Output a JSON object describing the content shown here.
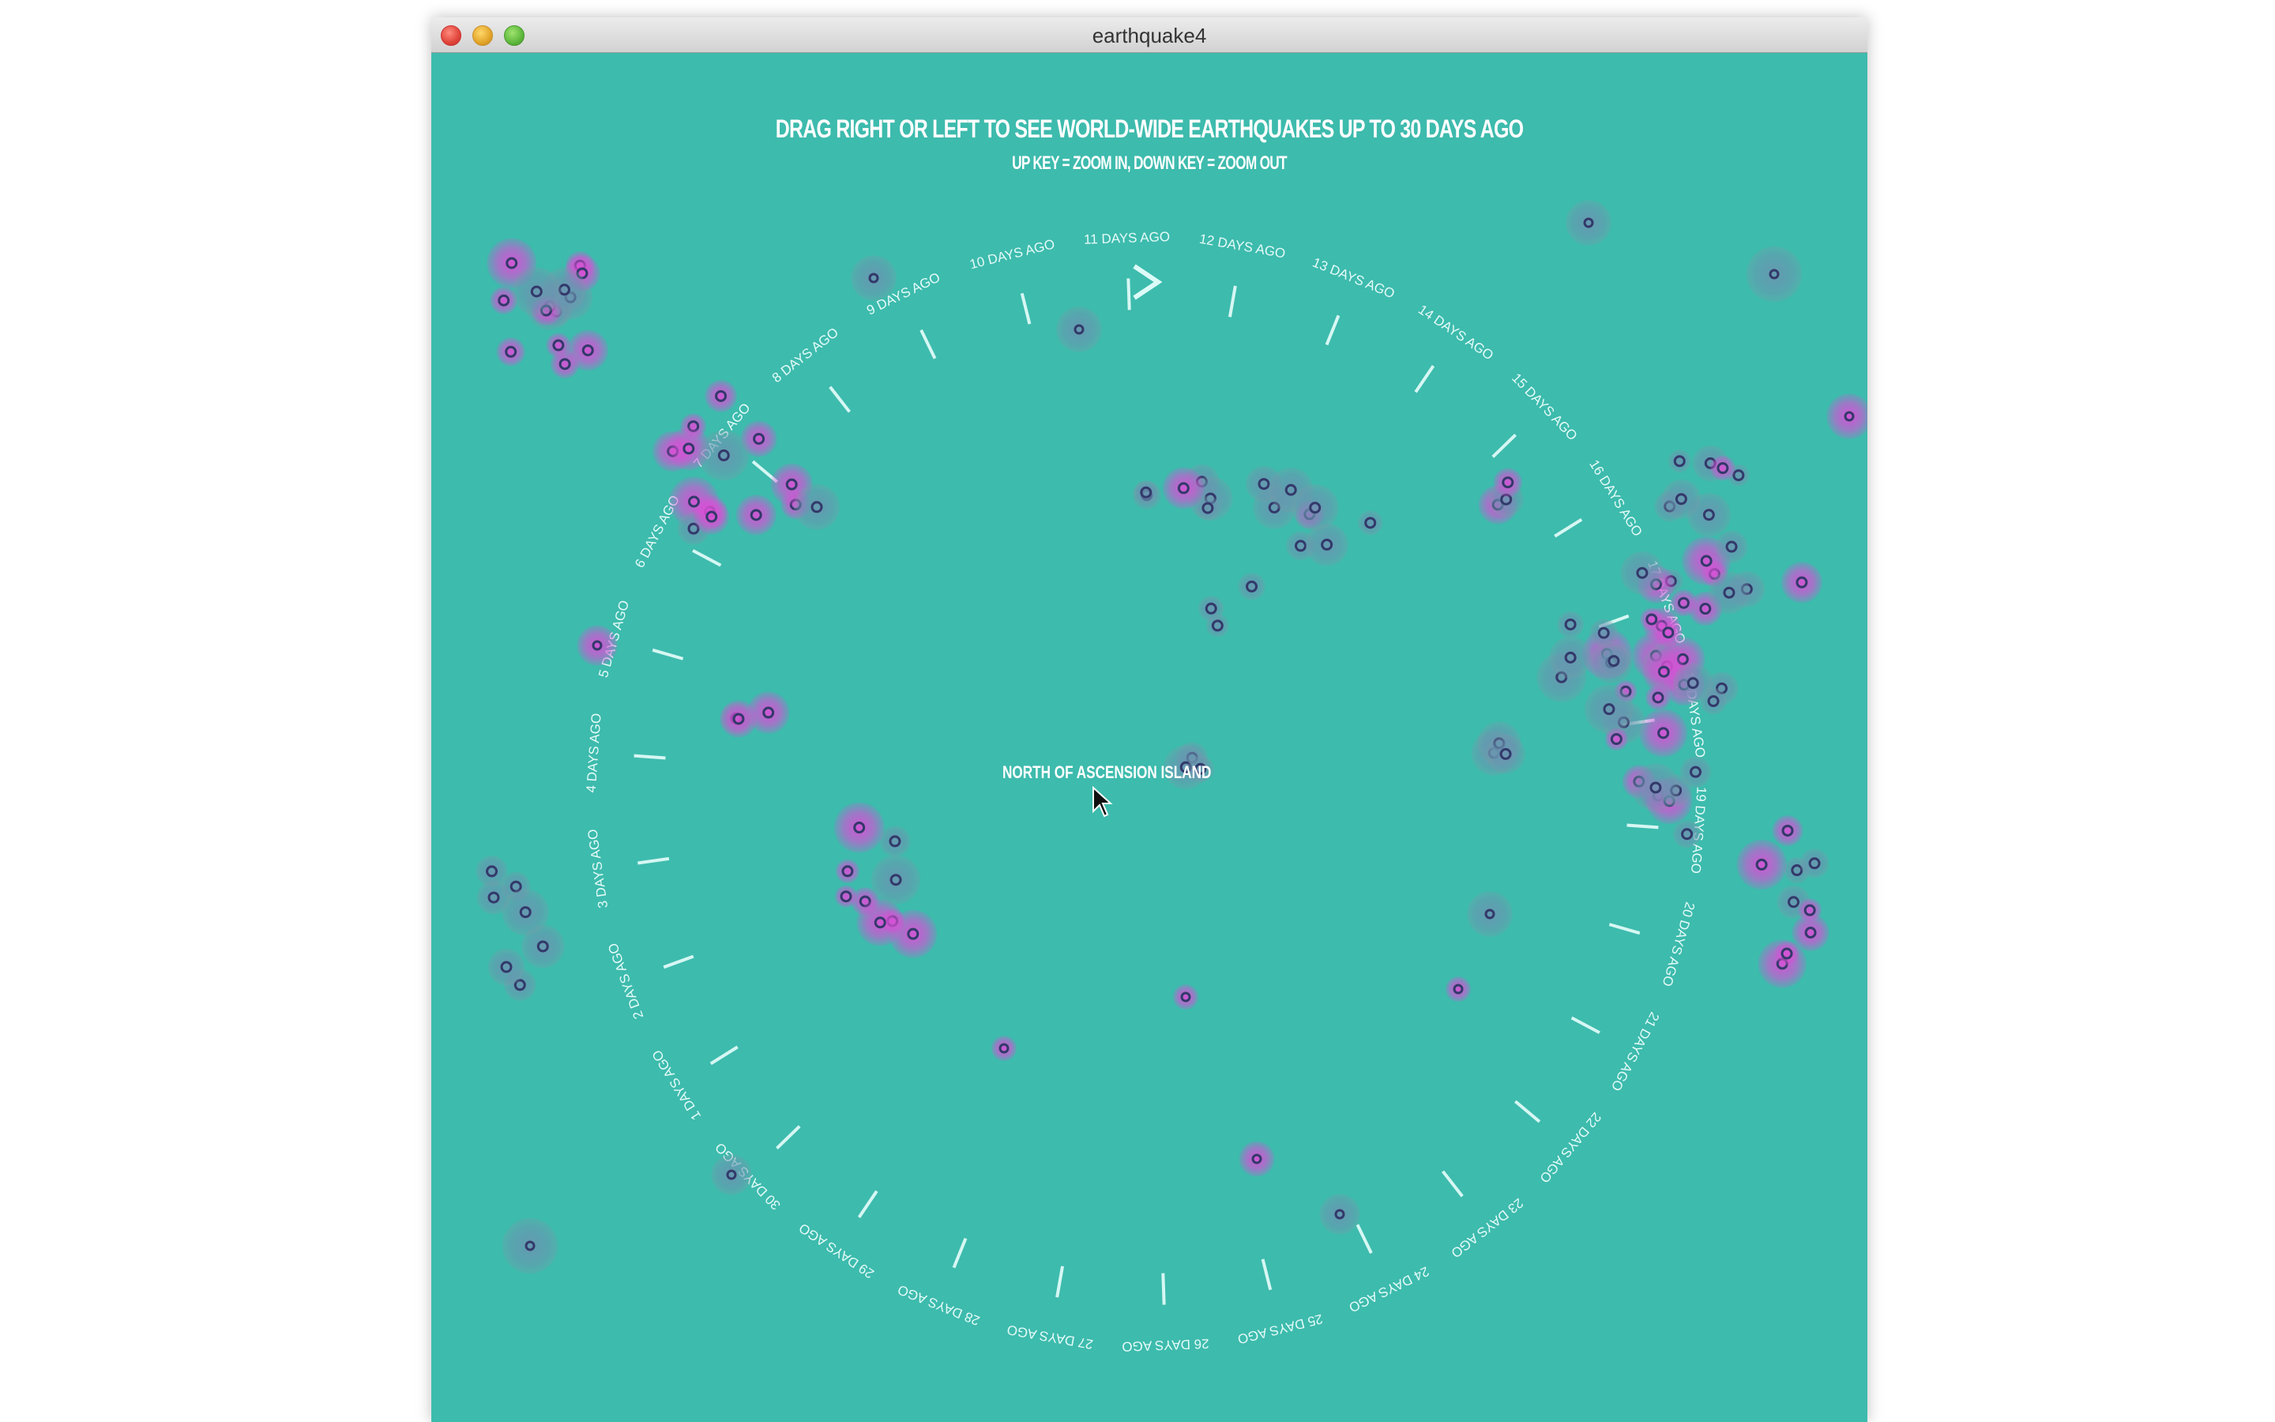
{
  "window": {
    "title": "earthquake4"
  },
  "instructions": {
    "primary": "DRAG RIGHT OR LEFT TO SEE WORLD-WIDE EARTHQUAKES UP TO 30 DAYS AGO",
    "secondary": "UP KEY = ZOOM IN, DOWN KEY = ZOOM OUT"
  },
  "dial": {
    "labels": [
      "1 DAYS AGO",
      "2 DAYS AGO",
      "3 DAYS AGO",
      "4 DAYS AGO",
      "5 DAYS AGO",
      "6 DAYS AGO",
      "7 DAYS AGO",
      "8 DAYS AGO",
      "9 DAYS AGO",
      "10 DAYS AGO",
      "11 DAYS AGO",
      "12 DAYS AGO",
      "13 DAYS AGO",
      "14 DAYS AGO",
      "15 DAYS AGO",
      "16 DAYS AGO",
      "17 DAYS AGO",
      "18 DAYS AGO",
      "19 DAYS AGO",
      "20 DAYS AGO",
      "21 DAYS AGO",
      "22 DAYS AGO",
      "23 DAYS AGO",
      "24 DAYS AGO",
      "25 DAYS AGO",
      "26 DAYS AGO",
      "27 DAYS AGO",
      "28 DAYS AGO",
      "29 DAYS AGO",
      "30 DAYS AGO"
    ],
    "pointer_icon": "chevron-right-icon"
  },
  "hover": {
    "location": "NORTH OF ASCENSION ISLAND"
  },
  "colors": {
    "background": "#3dbbad",
    "quake_recent": "#d94fd6",
    "quake_old": "#6a95b0",
    "quake_core": "#3a3f6e",
    "text": "#ffffff"
  }
}
